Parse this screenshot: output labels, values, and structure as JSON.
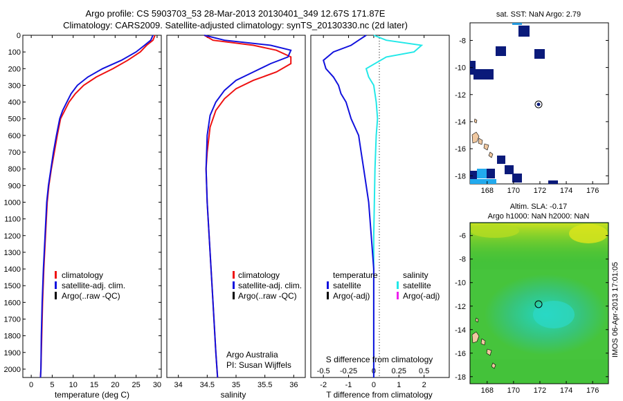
{
  "title_line1": "Argo profile: CS 5903703_53 28-Mar-2013 20130401_349 12.67S 171.87E",
  "title_line2": "Climatology: CARS2009. Satellite-adjusted climatology: synTS_20130330.nc (2d later)",
  "footer_vertical": "IMOS 06-Apr-2013 17:01:05",
  "colors": {
    "climatology": "#ee1111",
    "satellite": "#1111dd",
    "argo": "#000000",
    "sal_satellite": "#22e8e8",
    "sal_argo": "#ee22ee"
  },
  "depth_axis": {
    "ylim": [
      0,
      2050
    ],
    "ticks": [
      0,
      100,
      200,
      300,
      400,
      500,
      600,
      700,
      800,
      900,
      1000,
      1100,
      1200,
      1300,
      1400,
      1500,
      1600,
      1700,
      1800,
      1900,
      2000
    ]
  },
  "temp_panel": {
    "xlabel": "temperature (deg C)",
    "xlim": [
      -2,
      31
    ],
    "xticks": [
      0,
      5,
      10,
      15,
      20,
      25,
      30
    ],
    "legend": [
      "climatology",
      "satellite-adj. clim.",
      "Argo(..raw -QC)"
    ]
  },
  "sal_panel": {
    "xlabel": "salinity",
    "xlim": [
      33.8,
      36.2
    ],
    "xticks": [
      "34",
      "34.5",
      "35",
      "35.5",
      "36"
    ],
    "legend": [
      "climatology",
      "satellite-adj. clim.",
      "Argo(..raw -QC)"
    ],
    "note1": "Argo Australia",
    "note2": "PI: Susan Wijffels"
  },
  "diff_panel": {
    "xlabel": "T difference from climatology",
    "top_label": "S difference from climatology",
    "xticks_T": [
      "-2",
      "-1",
      "0",
      "1",
      "2"
    ],
    "xticks_S": [
      "-0.5",
      "-0.25",
      "0",
      "0.25",
      "0.5"
    ],
    "legend_t_title": "temperature",
    "legend_s_title": "salinity",
    "legend_t": [
      "satellite",
      "Argo(-adj)"
    ],
    "legend_s": [
      "satellite",
      "Argo(-adj)"
    ]
  },
  "sst_map": {
    "title": "sat. SST: NaN Argo: 2.79",
    "xticks": [
      "168",
      "170",
      "172",
      "174",
      "176"
    ],
    "yticks": [
      "-8",
      "-10",
      "-12",
      "-14",
      "-16",
      "-18"
    ]
  },
  "sla_map": {
    "title1": "Altim. SLA: -0.17",
    "title2": "Argo h1000: NaN h2000: NaN",
    "xticks": [
      "168",
      "170",
      "172",
      "174",
      "176"
    ],
    "yticks": [
      "-6",
      "-8",
      "-10",
      "-12",
      "-14",
      "-16",
      "-18"
    ]
  },
  "chart_data": [
    {
      "type": "line",
      "title": "",
      "xlabel": "temperature (deg C)",
      "ylabel": "",
      "xlim": [
        -2,
        31
      ],
      "ylim": [
        2050,
        0
      ],
      "series": [
        {
          "name": "climatology",
          "points": [
            [
              29.5,
              0
            ],
            [
              29.0,
              30
            ],
            [
              27.5,
              60
            ],
            [
              26.0,
              100
            ],
            [
              23.0,
              150
            ],
            [
              19.5,
              200
            ],
            [
              15.5,
              250
            ],
            [
              12.5,
              300
            ],
            [
              10.5,
              350
            ],
            [
              9.0,
              400
            ],
            [
              8.0,
              450
            ],
            [
              7.0,
              500
            ],
            [
              6.2,
              600
            ],
            [
              5.5,
              700
            ],
            [
              4.8,
              800
            ],
            [
              4.2,
              900
            ],
            [
              3.8,
              1000
            ],
            [
              3.4,
              1200
            ],
            [
              3.0,
              1400
            ],
            [
              2.7,
              1600
            ],
            [
              2.5,
              1800
            ],
            [
              2.3,
              2000
            ],
            [
              2.2,
              2050
            ]
          ]
        },
        {
          "name": "satellite-adj. clim.",
          "points": [
            [
              29.0,
              0
            ],
            [
              28.5,
              30
            ],
            [
              27.0,
              60
            ],
            [
              25.0,
              100
            ],
            [
              21.5,
              150
            ],
            [
              17.0,
              200
            ],
            [
              13.5,
              250
            ],
            [
              11.0,
              300
            ],
            [
              9.5,
              350
            ],
            [
              8.5,
              400
            ],
            [
              7.5,
              450
            ],
            [
              6.8,
              500
            ],
            [
              6.0,
              600
            ],
            [
              5.3,
              700
            ],
            [
              4.7,
              800
            ],
            [
              4.1,
              900
            ],
            [
              3.7,
              1000
            ],
            [
              3.3,
              1200
            ],
            [
              2.9,
              1400
            ],
            [
              2.6,
              1600
            ],
            [
              2.4,
              1800
            ],
            [
              2.3,
              2000
            ],
            [
              2.2,
              2050
            ]
          ]
        }
      ]
    },
    {
      "type": "line",
      "title": "",
      "xlabel": "salinity",
      "ylabel": "",
      "xlim": [
        33.8,
        36.2
      ],
      "ylim": [
        2050,
        0
      ],
      "series": [
        {
          "name": "climatology",
          "points": [
            [
              34.45,
              0
            ],
            [
              34.6,
              30
            ],
            [
              35.3,
              60
            ],
            [
              35.7,
              90
            ],
            [
              35.95,
              130
            ],
            [
              35.95,
              170
            ],
            [
              35.7,
              220
            ],
            [
              35.3,
              270
            ],
            [
              35.0,
              320
            ],
            [
              34.8,
              380
            ],
            [
              34.65,
              450
            ],
            [
              34.55,
              550
            ],
            [
              34.5,
              700
            ],
            [
              34.48,
              800
            ],
            [
              34.5,
              1000
            ],
            [
              34.55,
              1300
            ],
            [
              34.6,
              1600
            ],
            [
              34.65,
              1900
            ],
            [
              34.68,
              2050
            ]
          ]
        },
        {
          "name": "satellite-adj. clim.",
          "points": [
            [
              34.45,
              0
            ],
            [
              34.8,
              30
            ],
            [
              35.6,
              60
            ],
            [
              35.95,
              90
            ],
            [
              35.9,
              130
            ],
            [
              35.6,
              170
            ],
            [
              35.3,
              220
            ],
            [
              35.0,
              270
            ],
            [
              34.8,
              330
            ],
            [
              34.65,
              400
            ],
            [
              34.55,
              480
            ],
            [
              34.5,
              600
            ],
            [
              34.48,
              800
            ],
            [
              34.5,
              1000
            ],
            [
              34.55,
              1300
            ],
            [
              34.6,
              1600
            ],
            [
              34.65,
              1900
            ],
            [
              34.68,
              2050
            ]
          ]
        }
      ]
    },
    {
      "type": "line",
      "title": "",
      "xlabel": "T difference from climatology",
      "ylabel": "",
      "xlim": [
        -2.5,
        3.0
      ],
      "ylim": [
        2050,
        0
      ],
      "series": [
        {
          "name": "temperature satellite",
          "points": [
            [
              -0.3,
              0
            ],
            [
              -0.6,
              30
            ],
            [
              -0.9,
              60
            ],
            [
              -1.6,
              100
            ],
            [
              -2.0,
              150
            ],
            [
              -1.9,
              200
            ],
            [
              -1.6,
              250
            ],
            [
              -1.4,
              300
            ],
            [
              -1.3,
              350
            ],
            [
              -1.1,
              400
            ],
            [
              -0.9,
              500
            ],
            [
              -0.6,
              600
            ],
            [
              -0.5,
              700
            ],
            [
              -0.4,
              800
            ],
            [
              -0.3,
              900
            ],
            [
              -0.2,
              1000
            ],
            [
              -0.1,
              1200
            ],
            [
              0.0,
              1400
            ],
            [
              0.0,
              2050
            ]
          ]
        },
        {
          "name": "salinity satellite",
          "points": [
            [
              0.0,
              0
            ],
            [
              0.5,
              30
            ],
            [
              1.9,
              60
            ],
            [
              1.6,
              100
            ],
            [
              0.5,
              130
            ],
            [
              -0.3,
              200
            ],
            [
              -0.2,
              250
            ],
            [
              0.0,
              300
            ],
            [
              0.1,
              400
            ],
            [
              0.15,
              500
            ],
            [
              0.1,
              600
            ],
            [
              0.05,
              800
            ],
            [
              0.0,
              1200
            ],
            [
              0.0,
              2050
            ]
          ]
        }
      ]
    }
  ]
}
